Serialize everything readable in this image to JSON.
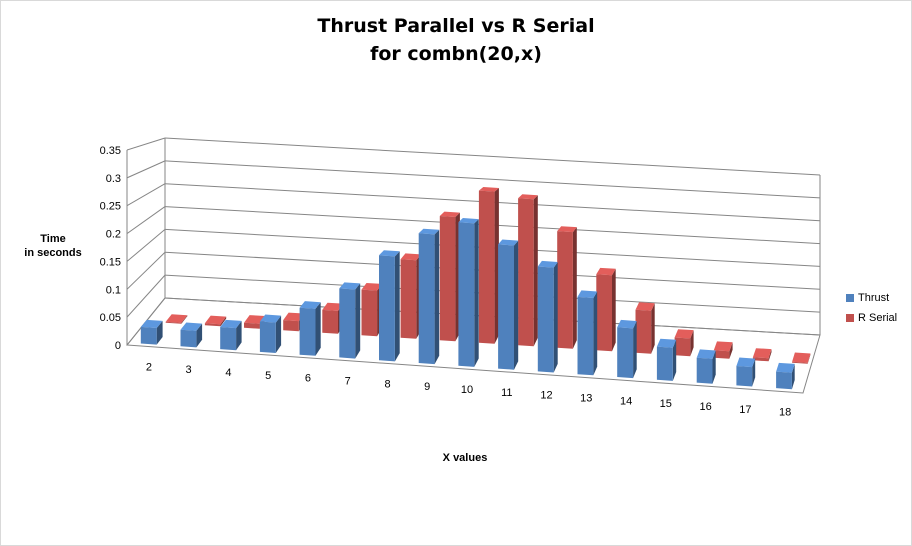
{
  "chart_data": {
    "type": "bar",
    "title": "Thrust Parallel vs R Serial",
    "subtitle": "for combn(20,x)",
    "xlabel": "X values",
    "ylabel_line1": "Time",
    "ylabel_line2": "in seconds",
    "categories": [
      "2",
      "3",
      "4",
      "5",
      "6",
      "7",
      "8",
      "9",
      "10",
      "11",
      "12",
      "13",
      "14",
      "15",
      "16",
      "17",
      "18"
    ],
    "ylim": [
      0,
      0.35
    ],
    "y_ticks": [
      "0",
      "0.05",
      "0.1",
      "0.15",
      "0.2",
      "0.25",
      "0.3",
      "0.35"
    ],
    "grid": true,
    "legend_position": "right",
    "projection": "3d",
    "series": [
      {
        "name": "Thrust",
        "color": "#4F81BD",
        "values": [
          0.03,
          0.03,
          0.04,
          0.055,
          0.085,
          0.125,
          0.19,
          0.235,
          0.26,
          0.225,
          0.19,
          0.14,
          0.09,
          0.06,
          0.045,
          0.035,
          0.03
        ]
      },
      {
        "name": "R Serial",
        "color": "#C0504D",
        "values": [
          0.002,
          0.004,
          0.01,
          0.02,
          0.045,
          0.09,
          0.155,
          0.245,
          0.3,
          0.29,
          0.23,
          0.15,
          0.085,
          0.035,
          0.015,
          0.006,
          0.002
        ]
      }
    ]
  }
}
